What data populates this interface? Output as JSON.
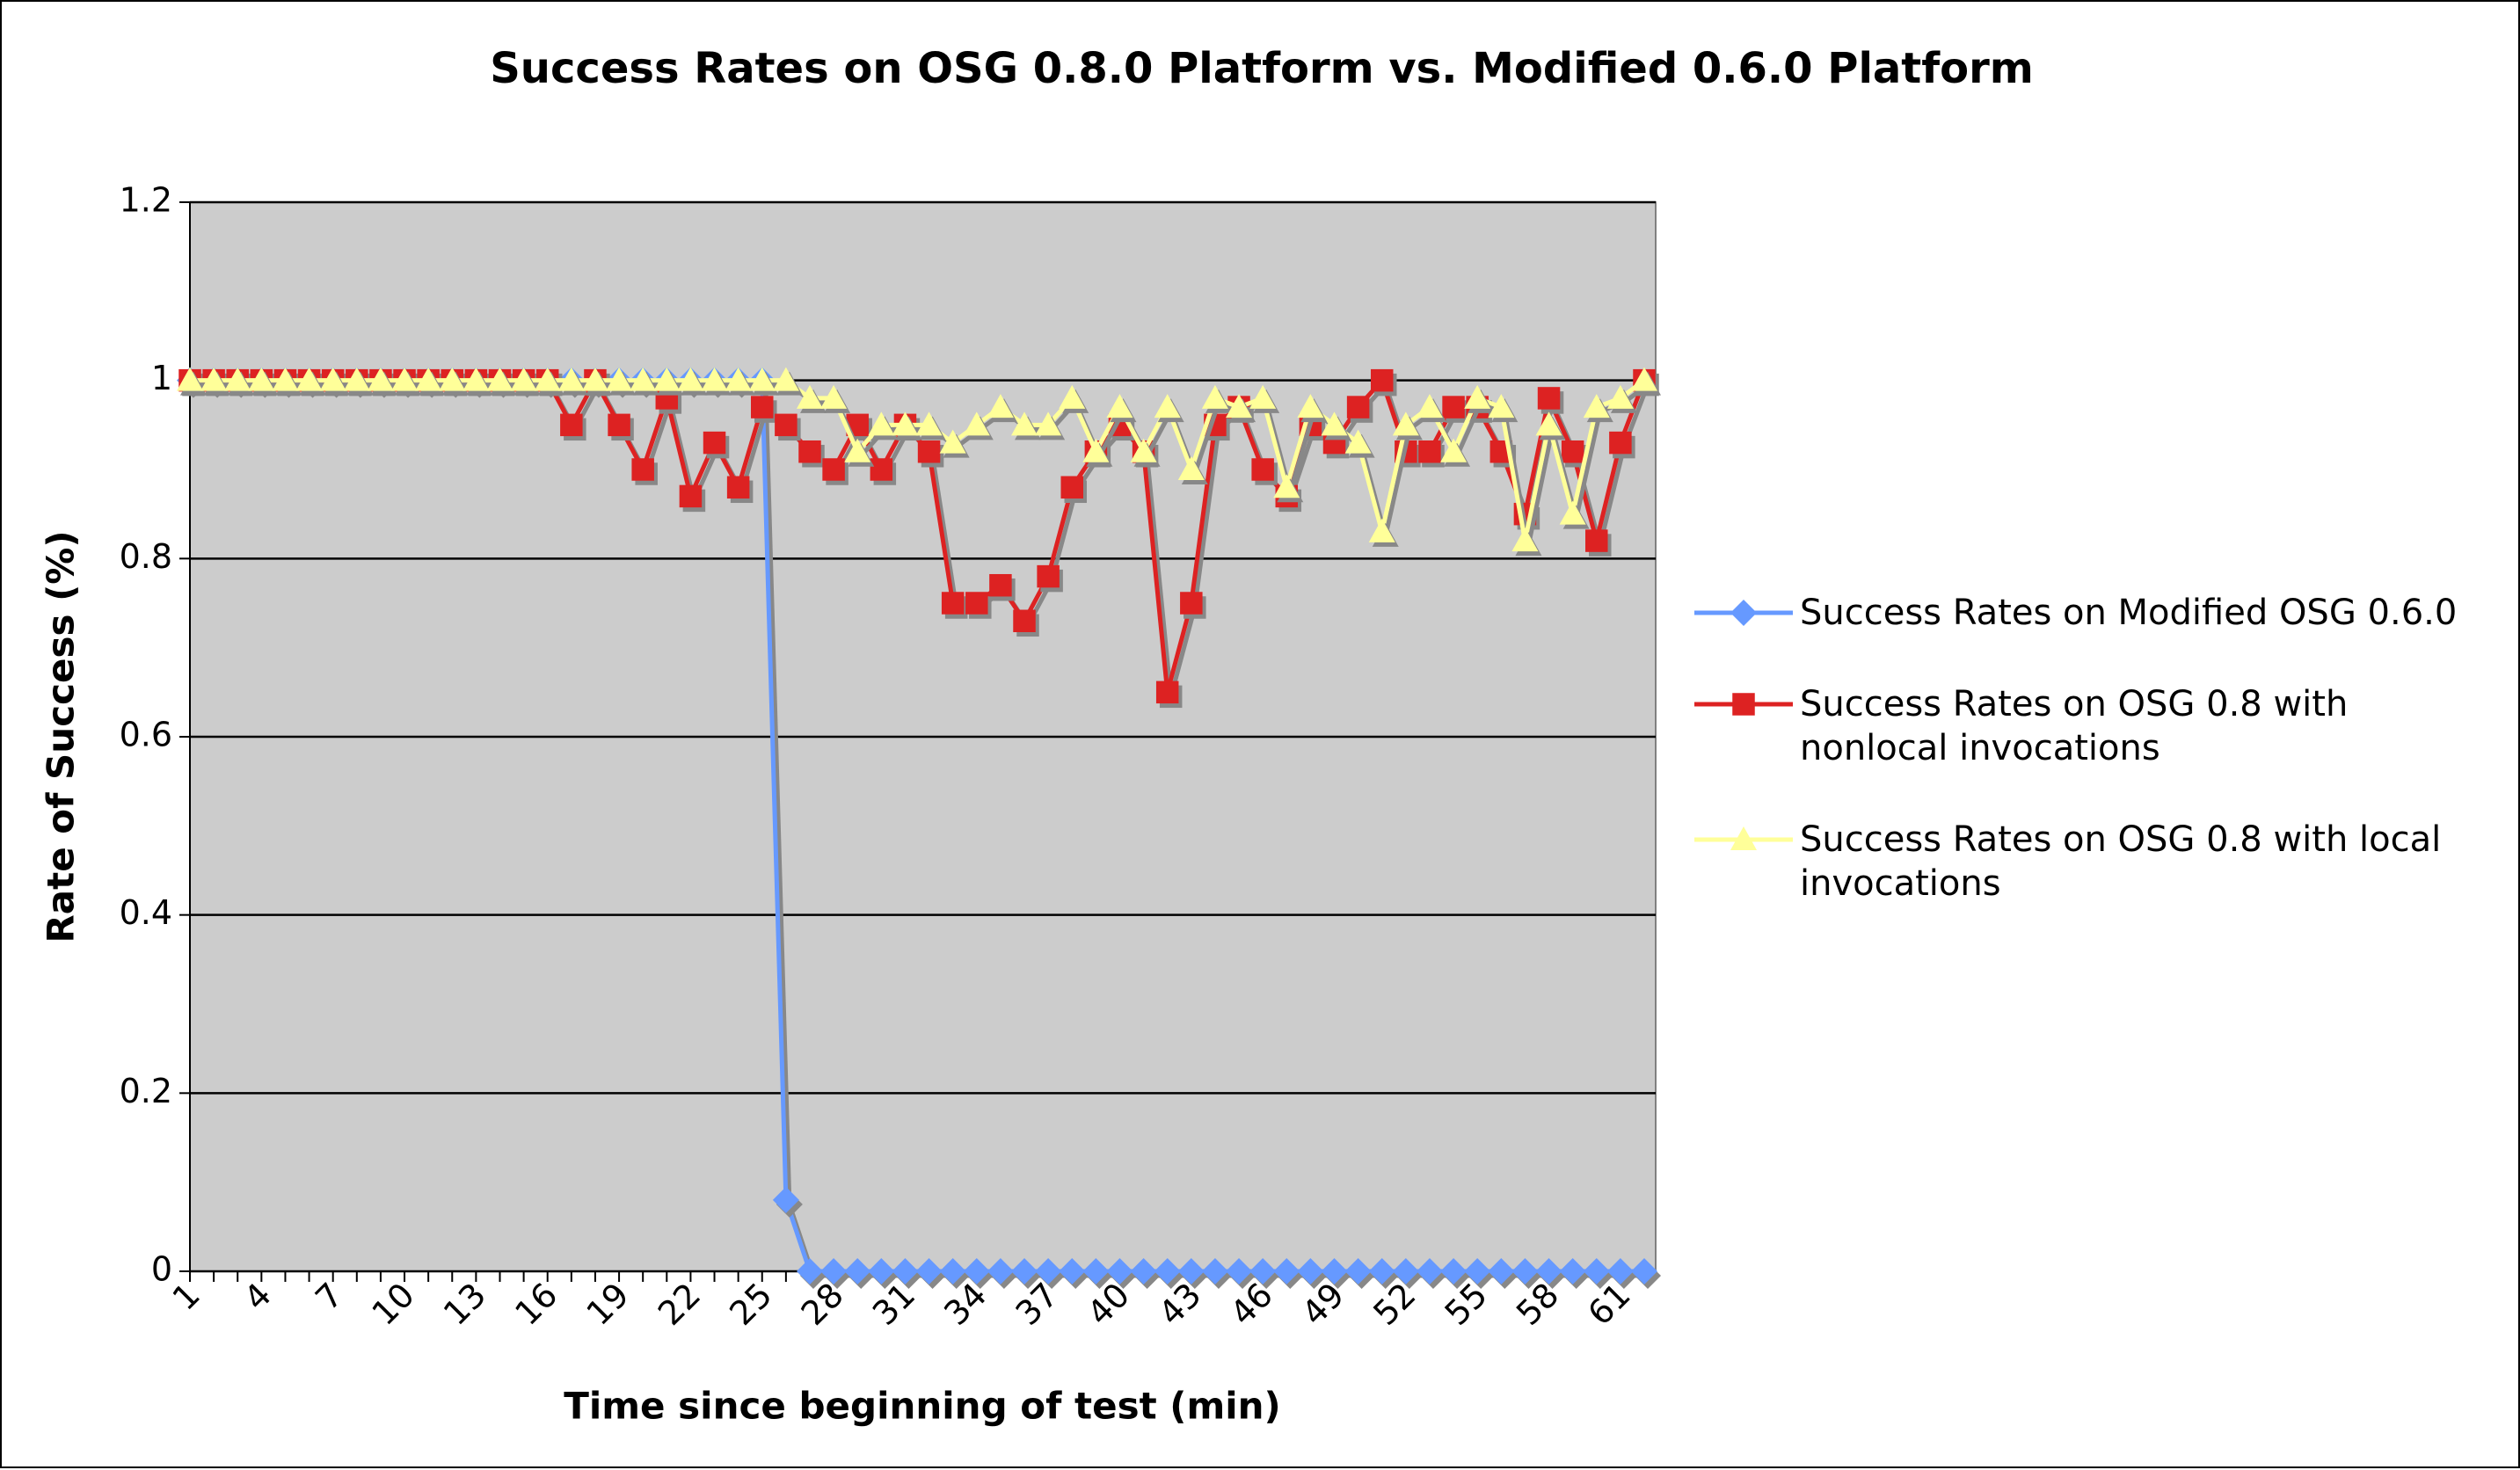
{
  "chart_data": {
    "type": "line",
    "title": "Success Rates on OSG 0.8.0 Platform vs. Modified 0.6.0 Platform",
    "x_label": "Time since beginning of test (min)",
    "y_label": "Rate of Success (%)",
    "categories": [
      "1",
      null,
      null,
      "4",
      null,
      null,
      "7",
      null,
      null,
      "10",
      null,
      null,
      "13",
      null,
      null,
      "16",
      null,
      null,
      "19",
      null,
      null,
      "22",
      null,
      null,
      "25",
      null,
      null,
      "28",
      null,
      null,
      "31",
      null,
      null,
      "34",
      null,
      null,
      "37",
      null,
      null,
      "40",
      null,
      null,
      "43",
      null,
      null,
      "46",
      null,
      null,
      "49",
      null,
      null,
      "52",
      null,
      null,
      "55",
      null,
      null,
      "58",
      null,
      null,
      "61",
      null
    ],
    "ylim": [
      0,
      1.2
    ],
    "yticks": [
      0,
      0.2,
      0.4,
      0.6,
      0.8,
      1,
      1.2
    ],
    "grid": true,
    "legend": "right",
    "series": [
      {
        "name": "Success Rates on Modified OSG 0.6.0",
        "color": "#6699ff",
        "marker": "diamond",
        "values": [
          1,
          1,
          1,
          1,
          1,
          1,
          1,
          1,
          1,
          1,
          1,
          1,
          1,
          1,
          1,
          1,
          1,
          1,
          1,
          1,
          1,
          1,
          1,
          1,
          1,
          0.08,
          0,
          0,
          0,
          0,
          0,
          0,
          0,
          0,
          0,
          0,
          0,
          0,
          0,
          0,
          0,
          0,
          0,
          0,
          0,
          0,
          0,
          0,
          0,
          0,
          0,
          0,
          0,
          0,
          0,
          0,
          0,
          0,
          0,
          0,
          0,
          0
        ]
      },
      {
        "name": "Success Rates on OSG 0.8 with nonlocal invocations",
        "color": "#dd2222",
        "marker": "square",
        "values": [
          1,
          1,
          1,
          1,
          1,
          1,
          1,
          1,
          1,
          1,
          1,
          1,
          1,
          1,
          1,
          1,
          0.95,
          1,
          0.95,
          0.9,
          0.98,
          0.87,
          0.93,
          0.88,
          0.97,
          0.95,
          0.92,
          0.9,
          0.95,
          0.9,
          0.95,
          0.92,
          0.75,
          0.75,
          0.77,
          0.73,
          0.78,
          0.88,
          0.92,
          0.95,
          0.92,
          0.65,
          0.75,
          0.95,
          0.97,
          0.9,
          0.87,
          0.95,
          0.93,
          0.97,
          1,
          0.92,
          0.92,
          0.97,
          0.97,
          0.92,
          0.85,
          0.98,
          0.92,
          0.82,
          0.93,
          1
        ]
      },
      {
        "name": "Success Rates on OSG 0.8 with local invocations",
        "color": "#ffff99",
        "marker": "triangle",
        "values": [
          1,
          1,
          1,
          1,
          1,
          1,
          1,
          1,
          1,
          1,
          1,
          1,
          1,
          1,
          1,
          1,
          1,
          1,
          1,
          1,
          1,
          1,
          1,
          1,
          1,
          1,
          0.98,
          0.98,
          0.92,
          0.95,
          0.95,
          0.95,
          0.93,
          0.95,
          0.97,
          0.95,
          0.95,
          0.98,
          0.92,
          0.97,
          0.92,
          0.97,
          0.9,
          0.98,
          0.97,
          0.98,
          0.88,
          0.97,
          0.95,
          0.93,
          0.83,
          0.95,
          0.97,
          0.92,
          0.98,
          0.97,
          0.82,
          0.95,
          0.85,
          0.97,
          0.98,
          1
        ]
      }
    ]
  }
}
